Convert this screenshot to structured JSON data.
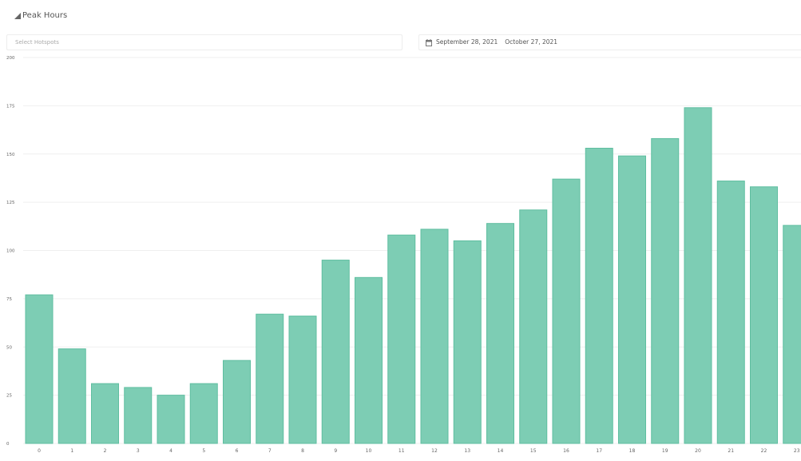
{
  "header": {
    "title": "Peak Hours",
    "title_icon": "chart-icon"
  },
  "filters": {
    "hotspot_placeholder": "Select Hotspots",
    "date_icon": "calendar-icon",
    "date_from": "September 28, 2021",
    "date_to": "October 27, 2021"
  },
  "colors": {
    "bar_fill": "#7dcdb4",
    "bar_stroke": "#5fbea0",
    "grid": "#efefef",
    "tick_text": "#666666"
  },
  "chart_data": {
    "type": "bar",
    "title": "Peak Hours",
    "xlabel": "",
    "ylabel": "",
    "categories": [
      "0",
      "1",
      "2",
      "3",
      "4",
      "5",
      "6",
      "7",
      "8",
      "9",
      "10",
      "11",
      "12",
      "13",
      "14",
      "15",
      "16",
      "17",
      "18",
      "19",
      "20",
      "21",
      "22",
      "23"
    ],
    "values": [
      77,
      49,
      31,
      29,
      25,
      31,
      43,
      67,
      66,
      95,
      86,
      108,
      111,
      105,
      114,
      121,
      137,
      153,
      149,
      158,
      174,
      136,
      133,
      113
    ],
    "y_ticks": [
      "0",
      "25",
      "50",
      "75",
      "100",
      "125",
      "150",
      "175",
      "200"
    ],
    "ylim": [
      0,
      200
    ],
    "grid": true,
    "legend": "none"
  }
}
